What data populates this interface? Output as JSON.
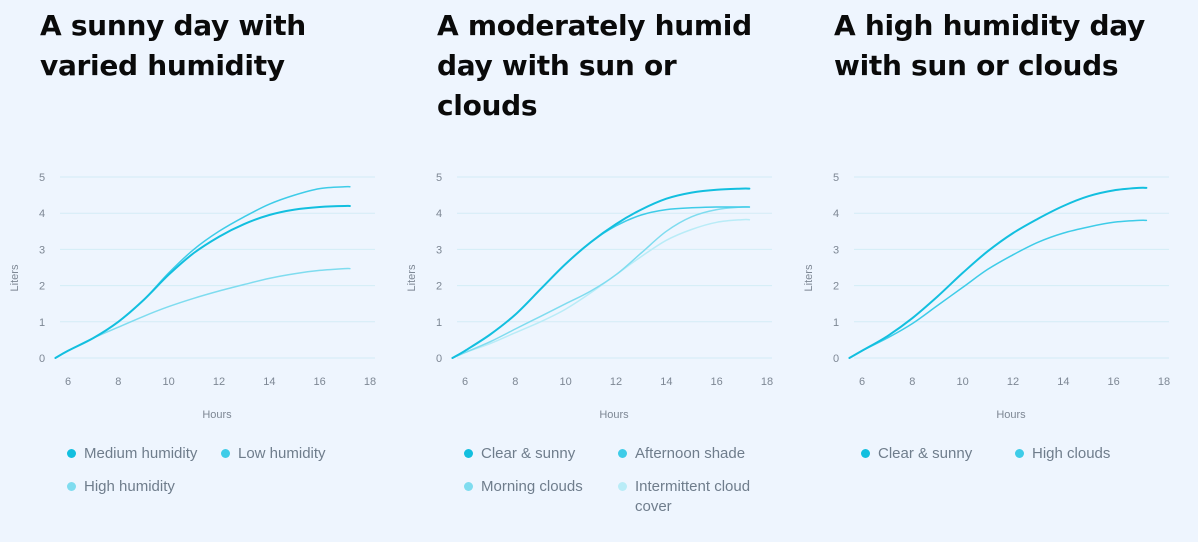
{
  "panels": [
    {
      "title": "A sunny day with varied humidity",
      "legend": [
        {
          "label": "Medium humidity",
          "color": "#12bfdf"
        },
        {
          "label": "Low humidity",
          "color": "#3ecce8"
        },
        {
          "label": "High humidity",
          "color": "#7fdcef"
        }
      ]
    },
    {
      "title": "A moderately humid day with sun or clouds",
      "legend": [
        {
          "label": "Clear & sunny",
          "color": "#12bfdf"
        },
        {
          "label": "Afternoon shade",
          "color": "#3ecce8"
        },
        {
          "label": "Morning clouds",
          "color": "#7fdcef"
        },
        {
          "label": "Intermittent cloud cover",
          "color": "#b9ecf7"
        }
      ]
    },
    {
      "title": "A high humidity day with sun or clouds",
      "legend": [
        {
          "label": "Clear & sunny",
          "color": "#12bfdf"
        },
        {
          "label": "High clouds",
          "color": "#3ecce8"
        }
      ]
    }
  ],
  "chart_data": [
    {
      "type": "line",
      "title": "A sunny day with varied humidity",
      "xlabel": "Hours",
      "ylabel": "Liters",
      "xlim": [
        5.5,
        18
      ],
      "ylim": [
        0,
        5
      ],
      "xticks": [
        6,
        8,
        10,
        12,
        14,
        16,
        18
      ],
      "yticks": [
        0,
        1,
        2,
        3,
        4,
        5
      ],
      "grid": true,
      "legend_position": "bottom",
      "series": [
        {
          "name": "Medium humidity",
          "color": "#12bfdf",
          "x": [
            5.5,
            6,
            7,
            8,
            9,
            10,
            11,
            12,
            13,
            14,
            15,
            16,
            17,
            17.2
          ],
          "y": [
            0,
            0.2,
            0.55,
            1.0,
            1.6,
            2.3,
            2.9,
            3.35,
            3.7,
            3.95,
            4.1,
            4.17,
            4.2,
            4.2
          ]
        },
        {
          "name": "Low humidity",
          "color": "#3ecce8",
          "x": [
            5.5,
            6,
            7,
            8,
            9,
            10,
            11,
            12,
            13,
            14,
            15,
            16,
            17,
            17.2
          ],
          "y": [
            0,
            0.2,
            0.55,
            1.0,
            1.6,
            2.35,
            3.0,
            3.5,
            3.9,
            4.25,
            4.5,
            4.68,
            4.73,
            4.73
          ]
        },
        {
          "name": "High humidity",
          "color": "#7fdcef",
          "x": [
            5.5,
            6,
            7,
            8,
            9,
            10,
            11,
            12,
            13,
            14,
            15,
            16,
            17,
            17.2
          ],
          "y": [
            0,
            0.2,
            0.55,
            0.85,
            1.15,
            1.42,
            1.65,
            1.85,
            2.03,
            2.2,
            2.33,
            2.42,
            2.47,
            2.47
          ]
        }
      ]
    },
    {
      "type": "line",
      "title": "A moderately humid day with sun or clouds",
      "xlabel": "Hours",
      "ylabel": "Liters",
      "xlim": [
        5.5,
        18
      ],
      "ylim": [
        0,
        5
      ],
      "xticks": [
        6,
        8,
        10,
        12,
        14,
        16,
        18
      ],
      "yticks": [
        0,
        1,
        2,
        3,
        4,
        5
      ],
      "grid": true,
      "legend_position": "bottom",
      "series": [
        {
          "name": "Clear & sunny",
          "color": "#12bfdf",
          "x": [
            5.5,
            6,
            7,
            8,
            9,
            10,
            11,
            12,
            13,
            14,
            15,
            16,
            17,
            17.3
          ],
          "y": [
            0,
            0.2,
            0.65,
            1.2,
            1.9,
            2.6,
            3.2,
            3.7,
            4.1,
            4.4,
            4.57,
            4.65,
            4.68,
            4.68
          ]
        },
        {
          "name": "Afternoon shade",
          "color": "#3ecce8",
          "x": [
            5.5,
            6,
            7,
            8,
            9,
            10,
            11,
            12,
            13,
            14,
            15,
            16,
            17,
            17.3
          ],
          "y": [
            0,
            0.2,
            0.65,
            1.2,
            1.9,
            2.6,
            3.2,
            3.65,
            3.95,
            4.1,
            4.15,
            4.17,
            4.17,
            4.17
          ]
        },
        {
          "name": "Morning clouds",
          "color": "#7fdcef",
          "x": [
            5.5,
            6,
            7,
            8,
            9,
            10,
            11,
            12,
            13,
            14,
            15,
            16,
            17,
            17.3
          ],
          "y": [
            0,
            0.15,
            0.45,
            0.8,
            1.15,
            1.5,
            1.85,
            2.3,
            2.9,
            3.5,
            3.9,
            4.1,
            4.17,
            4.17
          ]
        },
        {
          "name": "Intermittent cloud cover",
          "color": "#b9ecf7",
          "x": [
            5.5,
            6,
            7,
            8,
            9,
            10,
            11,
            12,
            13,
            14,
            15,
            16,
            17,
            17.3
          ],
          "y": [
            0,
            0.15,
            0.4,
            0.7,
            1.0,
            1.35,
            1.8,
            2.3,
            2.8,
            3.25,
            3.55,
            3.75,
            3.82,
            3.82
          ]
        }
      ]
    },
    {
      "type": "line",
      "title": "A high humidity day with sun or clouds",
      "xlabel": "Hours",
      "ylabel": "Liters",
      "xlim": [
        5.5,
        18
      ],
      "ylim": [
        0,
        5
      ],
      "xticks": [
        6,
        8,
        10,
        12,
        14,
        16,
        18
      ],
      "yticks": [
        0,
        1,
        2,
        3,
        4,
        5
      ],
      "grid": true,
      "legend_position": "bottom",
      "series": [
        {
          "name": "Clear & sunny",
          "color": "#12bfdf",
          "x": [
            5.5,
            6,
            7,
            8,
            9,
            10,
            11,
            12,
            13,
            14,
            15,
            16,
            17,
            17.3
          ],
          "y": [
            0,
            0.2,
            0.6,
            1.1,
            1.7,
            2.35,
            2.95,
            3.45,
            3.85,
            4.2,
            4.47,
            4.63,
            4.7,
            4.7
          ]
        },
        {
          "name": "High clouds",
          "color": "#3ecce8",
          "x": [
            5.5,
            6,
            7,
            8,
            9,
            10,
            11,
            12,
            13,
            14,
            15,
            16,
            17,
            17.3
          ],
          "y": [
            0,
            0.2,
            0.55,
            0.95,
            1.45,
            1.95,
            2.45,
            2.85,
            3.2,
            3.45,
            3.62,
            3.75,
            3.8,
            3.8
          ]
        }
      ]
    }
  ]
}
